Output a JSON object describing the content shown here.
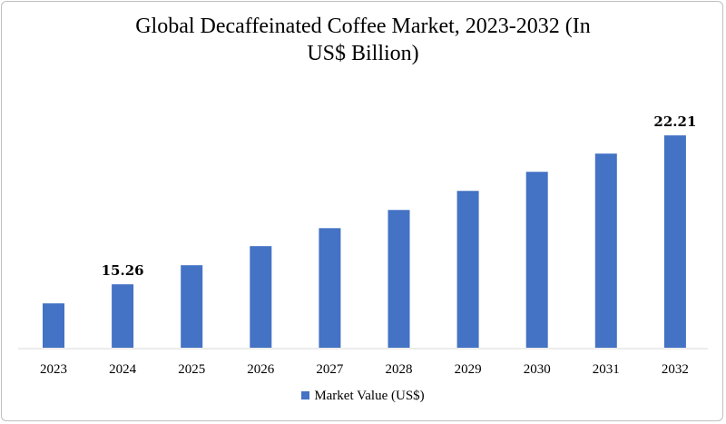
{
  "chart_data": {
    "type": "bar",
    "title": "Global  Decaffeinated Coffee Market, 2023-2032 (In US$ Billion)",
    "title_lines": [
      "Global  Decaffeinated Coffee Market, 2023-2032 (In",
      "US$ Billion)"
    ],
    "categories": [
      "2023",
      "2024",
      "2025",
      "2026",
      "2027",
      "2028",
      "2029",
      "2030",
      "2031",
      "2032"
    ],
    "series": [
      {
        "name": "Market Value (US$)",
        "color": "#4472c4",
        "values": [
          14.37,
          15.26,
          16.15,
          17.04,
          17.88,
          18.73,
          19.62,
          20.51,
          21.36,
          22.21
        ]
      }
    ],
    "data_labels": [
      {
        "category": "2024",
        "text": "15.26"
      },
      {
        "category": "2032",
        "text": "22.21"
      }
    ],
    "xlabel": "",
    "ylabel": "",
    "ylim": [
      12.3,
      22.21
    ],
    "y_axis_visible": false,
    "grid": false,
    "legend": "bottom"
  }
}
